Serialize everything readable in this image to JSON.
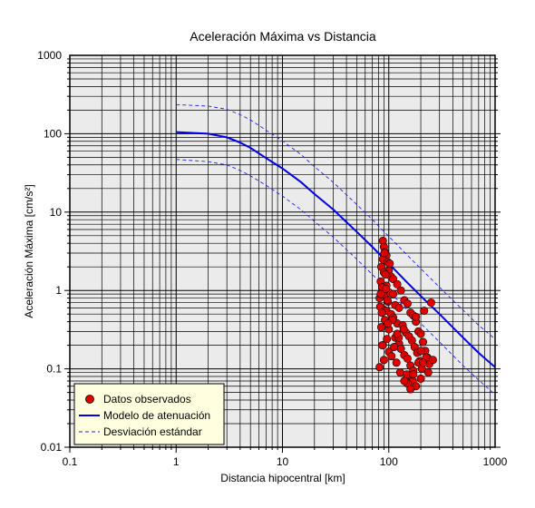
{
  "chart_data": {
    "type": "scatter",
    "title": "Aceleración Máxima vs Distancia",
    "xlabel": "Distancia hipocentral [km]",
    "ylabel": "Aceleración Máxima [cm/s²]",
    "x_scale": "log",
    "y_scale": "log",
    "xlim": [
      0.1,
      1000
    ],
    "ylim": [
      0.01,
      1000
    ],
    "x_ticks": [
      "0.1",
      "1",
      "10",
      "100",
      "1000"
    ],
    "y_ticks": [
      "0.01",
      "0.1",
      "1",
      "10",
      "100",
      "1000"
    ],
    "grid": true,
    "legend_position": "bottom-left",
    "legend": [
      "Datos observados",
      "Modelo de atenuación",
      "Desviación estándar"
    ],
    "colors": {
      "points": "#e00000",
      "model": "#0000ee",
      "deviation": "#2222ee",
      "plot_background": "#ebebeb",
      "legend_background": "#ffffe0"
    },
    "series": [
      {
        "name": "Modelo de atenuación",
        "kind": "line",
        "x": [
          1,
          2,
          3,
          4,
          5,
          7,
          10,
          15,
          20,
          30,
          50,
          70,
          100,
          150,
          200,
          300,
          500,
          700,
          1000
        ],
        "y": [
          105,
          100,
          90,
          77,
          66,
          49,
          36,
          24,
          17,
          10.8,
          5.6,
          3.6,
          2.2,
          1.25,
          0.85,
          0.5,
          0.25,
          0.16,
          0.105
        ]
      },
      {
        "name": "Desviación estándar",
        "kind": "line",
        "x": [
          1,
          2,
          3,
          4,
          5,
          7,
          10,
          15,
          20,
          30,
          50,
          70,
          100,
          150,
          200,
          300,
          500,
          700,
          1000
        ],
        "y": [
          235,
          225,
          205,
          175,
          150,
          111,
          81,
          54,
          38,
          24,
          12.5,
          8.0,
          4.9,
          2.8,
          1.9,
          1.1,
          0.56,
          0.36,
          0.24
        ]
      },
      {
        "name": "Desviación estándar",
        "kind": "line",
        "x": [
          1,
          2,
          3,
          4,
          5,
          7,
          10,
          15,
          20,
          30,
          50,
          70,
          100,
          150,
          200,
          300,
          500,
          700,
          1000
        ],
        "y": [
          47,
          44,
          40,
          34,
          29,
          22,
          16,
          10.7,
          7.6,
          4.8,
          2.5,
          1.6,
          0.98,
          0.56,
          0.38,
          0.22,
          0.11,
          0.072,
          0.047
        ]
      },
      {
        "name": "Datos observados",
        "kind": "scatter",
        "x": [
          88,
          90,
          92,
          95,
          88,
          98,
          85,
          100,
          90,
          105,
          110,
          84,
          120,
          95,
          87,
          130,
          100,
          110,
          90,
          82,
          140,
          98,
          150,
          115,
          125,
          88,
          95,
          160,
          105,
          170,
          110,
          92,
          180,
          120,
          135,
          85,
          100,
          190,
          145,
          200,
          155,
          115,
          96,
          165,
          210,
          125,
          88,
          175,
          130,
          220,
          100,
          185,
          140,
          106,
          230,
          150,
          90,
          195,
          118,
          240,
          160,
          82,
          205,
          170,
          128,
          250,
          94,
          215,
          180,
          138,
          83,
          225,
          160,
          108,
          190,
          148,
          260,
          86,
          235,
          200,
          124,
          168,
          98,
          210,
          150,
          180,
          112,
          170,
          160,
          140,
          200,
          84,
          102,
          120,
          93,
          87,
          91,
          97
        ],
        "y": [
          4.3,
          3.6,
          3.1,
          2.8,
          2.5,
          2.3,
          2.0,
          1.8,
          1.7,
          1.5,
          1.4,
          1.3,
          1.2,
          1.15,
          1.1,
          1.0,
          0.95,
          0.9,
          0.85,
          0.8,
          0.75,
          0.72,
          0.68,
          0.65,
          0.6,
          0.58,
          0.55,
          0.52,
          0.5,
          0.48,
          0.45,
          0.42,
          0.4,
          0.38,
          0.36,
          0.34,
          0.32,
          0.3,
          0.29,
          0.28,
          0.26,
          0.25,
          0.24,
          0.23,
          0.22,
          0.21,
          0.2,
          0.19,
          0.18,
          0.17,
          0.165,
          0.16,
          0.15,
          0.145,
          0.14,
          0.135,
          0.13,
          0.125,
          0.12,
          0.115,
          0.11,
          0.105,
          0.1,
          0.095,
          0.09,
          0.7,
          1.05,
          0.55,
          0.46,
          0.32,
          0.62,
          0.14,
          0.08,
          0.42,
          0.12,
          0.085,
          0.13,
          0.52,
          0.09,
          0.17,
          0.25,
          0.07,
          0.38,
          0.12,
          0.065,
          0.06,
          0.19,
          0.085,
          0.055,
          0.07,
          0.075,
          0.9,
          2.2,
          0.28,
          1.6,
          0.2,
          3.0,
          0.75
        ]
      }
    ]
  }
}
